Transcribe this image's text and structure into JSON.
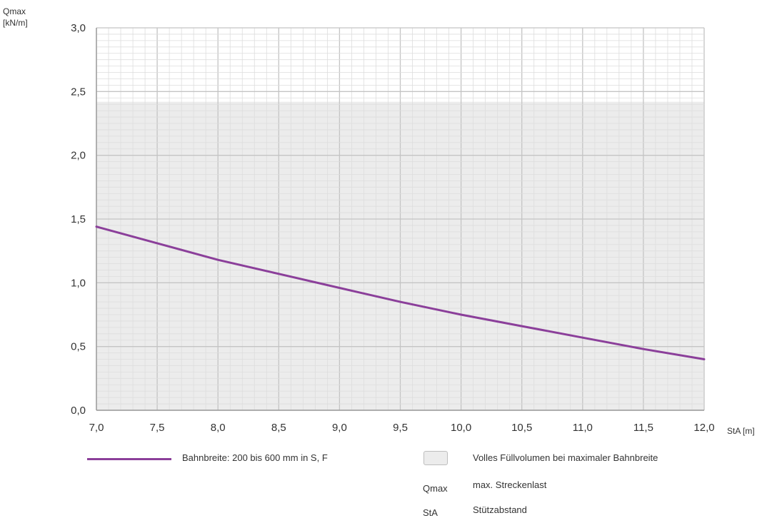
{
  "chart_data": {
    "type": "line",
    "title": "",
    "ylabel_line1": "Qmax",
    "ylabel_line2": "[kN/m]",
    "xlabel": "StA [m]",
    "xlim": [
      7.0,
      12.0
    ],
    "ylim": [
      0.0,
      3.0
    ],
    "x_ticks": [
      "7,0",
      "7,5",
      "8,0",
      "8,5",
      "9,0",
      "9,5",
      "10,0",
      "10,5",
      "11,0",
      "11,5",
      "12,0"
    ],
    "y_ticks": [
      "0,0",
      "0,5",
      "1,0",
      "1,5",
      "2,0",
      "2,5",
      "3,0"
    ],
    "shaded_region": {
      "y_from": 0.0,
      "y_to": 2.42,
      "color": "#ececec"
    },
    "grid": true,
    "series": [
      {
        "name": "Bahnbreite: 200 bis 600 mm in S, F",
        "color": "#8b3f9a",
        "x": [
          7.0,
          7.5,
          8.0,
          8.5,
          9.0,
          9.5,
          10.0,
          10.5,
          11.0,
          11.5,
          12.0
        ],
        "y": [
          1.44,
          1.31,
          1.18,
          1.07,
          0.96,
          0.85,
          0.75,
          0.66,
          0.57,
          0.48,
          0.4
        ]
      }
    ],
    "legend": {
      "line_label": "Bahnbreite: 200 bis 600 mm in S, F",
      "box_label": "Volles Füllvolumen bei maximaler Bahnbreite",
      "abbr": [
        {
          "key": "Qmax",
          "desc": "max. Streckenlast"
        },
        {
          "key": "StA",
          "desc": "Stützabstand"
        }
      ]
    }
  }
}
